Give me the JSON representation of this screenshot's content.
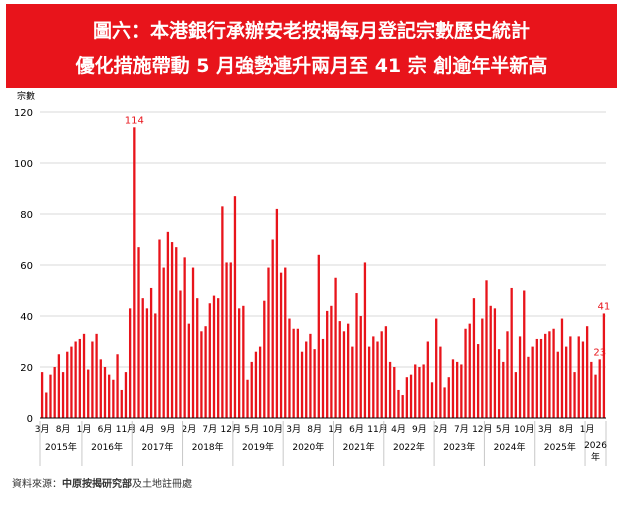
{
  "header": {
    "title_line1": "圖六：本港銀行承辦安老按揭每月登記宗數歷史統計",
    "title_line2": "優化措施帶動 5 月強勢連升兩月至 41 宗 創逾年半新高"
  },
  "source": {
    "prefix": "資料來源：",
    "org": "中原按揭研究部",
    "suffix": "及土地註冊處"
  },
  "colors": {
    "banner": "#e8141b",
    "bar": "#e8141b",
    "label": "#e8141b"
  },
  "chart_data": {
    "type": "bar",
    "ylabel": "宗數",
    "ylim": [
      0,
      120
    ],
    "yticks": [
      0,
      20,
      40,
      60,
      80,
      100,
      120
    ],
    "grid": true,
    "values": [
      18,
      10,
      17,
      20,
      25,
      18,
      26,
      28,
      30,
      31,
      33,
      19,
      30,
      33,
      23,
      20,
      17,
      15,
      25,
      11,
      18,
      43,
      114,
      67,
      47,
      43,
      51,
      41,
      70,
      59,
      73,
      69,
      67,
      50,
      63,
      37,
      59,
      47,
      34,
      36,
      45,
      48,
      47,
      83,
      61,
      61,
      87,
      43,
      44,
      15,
      22,
      26,
      28,
      46,
      59,
      70,
      82,
      57,
      59,
      39,
      35,
      35,
      26,
      30,
      33,
      27,
      64,
      31,
      42,
      44,
      55,
      38,
      34,
      37,
      28,
      49,
      40,
      61,
      28,
      32,
      30,
      34,
      36,
      22,
      20,
      11,
      9,
      16,
      17,
      21,
      20,
      21,
      30,
      14,
      39,
      28,
      12,
      16,
      23,
      22,
      21,
      35,
      37,
      47,
      29,
      39,
      54,
      44,
      43,
      27,
      22,
      34,
      51,
      18,
      32,
      50,
      24,
      28,
      31,
      31,
      33,
      34,
      35,
      26,
      39,
      28,
      32,
      18,
      32,
      30,
      36,
      22,
      17,
      23,
      41
    ],
    "tick_labels": [
      {
        "index": 0,
        "label": "3月"
      },
      {
        "index": 5,
        "label": "8月"
      },
      {
        "index": 10,
        "label": "1月"
      },
      {
        "index": 15,
        "label": "6月"
      },
      {
        "index": 20,
        "label": "11月"
      },
      {
        "index": 25,
        "label": "4月"
      },
      {
        "index": 30,
        "label": "9月"
      },
      {
        "index": 35,
        "label": "2月"
      },
      {
        "index": 40,
        "label": "7月"
      },
      {
        "index": 45,
        "label": "12月"
      },
      {
        "index": 50,
        "label": "5月"
      },
      {
        "index": 55,
        "label": "10月"
      },
      {
        "index": 60,
        "label": "3月"
      },
      {
        "index": 65,
        "label": "8月"
      },
      {
        "index": 70,
        "label": "1月"
      },
      {
        "index": 75,
        "label": "6月"
      },
      {
        "index": 80,
        "label": "11月"
      },
      {
        "index": 85,
        "label": "4月"
      },
      {
        "index": 90,
        "label": "9月"
      },
      {
        "index": 95,
        "label": "2月"
      },
      {
        "index": 100,
        "label": "7月"
      },
      {
        "index": 105,
        "label": "12月"
      },
      {
        "index": 110,
        "label": "5月"
      },
      {
        "index": 115,
        "label": "10月"
      },
      {
        "index": 120,
        "label": "3月"
      },
      {
        "index": 125,
        "label": "8月"
      },
      {
        "index": 130,
        "label": "1月"
      }
    ],
    "years": [
      {
        "label": "2015年",
        "start": 0,
        "end": 9
      },
      {
        "label": "2016年",
        "start": 10,
        "end": 21
      },
      {
        "label": "2017年",
        "start": 22,
        "end": 33
      },
      {
        "label": "2018年",
        "start": 34,
        "end": 45
      },
      {
        "label": "2019年",
        "start": 46,
        "end": 57
      },
      {
        "label": "2020年",
        "start": 58,
        "end": 69
      },
      {
        "label": "2021年",
        "start": 70,
        "end": 81
      },
      {
        "label": "2022年",
        "start": 82,
        "end": 93
      },
      {
        "label": "2023年",
        "start": 94,
        "end": 105
      },
      {
        "label": "2024年",
        "start": 106,
        "end": 117
      },
      {
        "label": "2025年",
        "start": 118,
        "end": 129
      },
      {
        "label": "2026年",
        "start": 130,
        "end": 134
      }
    ],
    "data_labels": [
      {
        "index": 22,
        "text": "114"
      },
      {
        "index": 133,
        "text": "23"
      },
      {
        "index": 134,
        "text": "41"
      }
    ]
  }
}
